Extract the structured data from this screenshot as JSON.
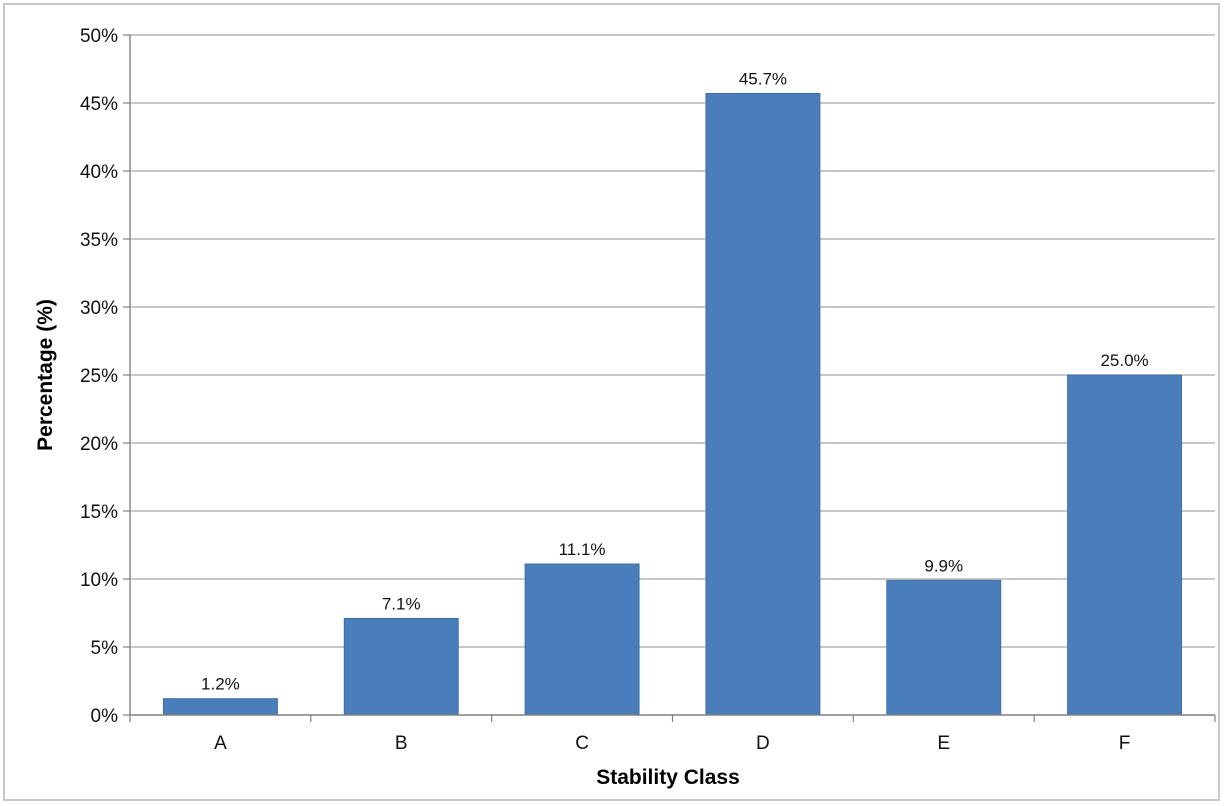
{
  "chart_data": {
    "type": "bar",
    "title": "",
    "xlabel": "Stability Class",
    "ylabel": "Percentage (%)",
    "categories": [
      "A",
      "B",
      "C",
      "D",
      "E",
      "F"
    ],
    "values": [
      1.2,
      7.1,
      11.1,
      45.7,
      9.9,
      25.0
    ],
    "data_labels": [
      "1.2%",
      "7.1%",
      "11.1%",
      "45.7%",
      "9.9%",
      "25.0%"
    ],
    "ylim": [
      0,
      50
    ],
    "yticks": [
      0,
      5,
      10,
      15,
      20,
      25,
      30,
      35,
      40,
      45,
      50
    ],
    "ytick_labels": [
      "0%",
      "5%",
      "10%",
      "15%",
      "20%",
      "25%",
      "30%",
      "35%",
      "40%",
      "45%",
      "50%"
    ],
    "grid": true,
    "legend": "none",
    "colors": {
      "bar": "#4a7ebb",
      "bar_edge": "#3f6fa8",
      "grid": "#a6a6a6",
      "axis": "#808080"
    }
  }
}
